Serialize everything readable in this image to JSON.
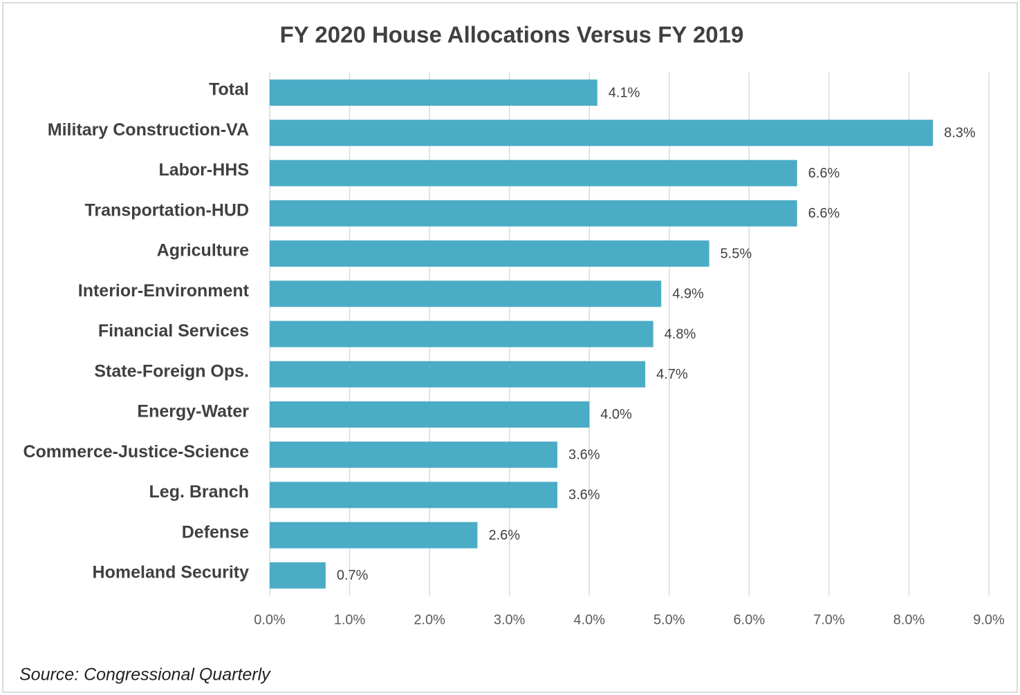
{
  "chart_data": {
    "type": "bar",
    "orientation": "horizontal",
    "title": "FY 2020 House Allocations Versus FY 2019",
    "source": "Source: Congressional Quarterly",
    "categories": [
      "Total",
      "Military Construction-VA",
      "Labor-HHS",
      "Transportation-HUD",
      "Agriculture",
      "Interior-Environment",
      "Financial Services",
      "State-Foreign Ops.",
      "Energy-Water",
      "Commerce-Justice-Science",
      "Leg. Branch",
      "Defense",
      "Homeland Security"
    ],
    "values": [
      4.1,
      8.3,
      6.6,
      6.6,
      5.5,
      4.9,
      4.8,
      4.7,
      4.0,
      3.6,
      3.6,
      2.6,
      0.7
    ],
    "value_labels": [
      "4.1%",
      "8.3%",
      "6.6%",
      "6.6%",
      "5.5%",
      "4.9%",
      "4.8%",
      "4.7%",
      "4.0%",
      "3.6%",
      "3.6%",
      "2.6%",
      "0.7%"
    ],
    "color": "#4bacc6",
    "xlim": [
      0,
      9
    ],
    "xticks": [
      {
        "value": 0,
        "label": "0.0%"
      },
      {
        "value": 1,
        "label": "1.0%"
      },
      {
        "value": 2,
        "label": "2.0%"
      },
      {
        "value": 3,
        "label": "3.0%"
      },
      {
        "value": 4,
        "label": "4.0%"
      },
      {
        "value": 5,
        "label": "5.0%"
      },
      {
        "value": 6,
        "label": "6.0%"
      },
      {
        "value": 7,
        "label": "7.0%"
      },
      {
        "value": 8,
        "label": "8.0%"
      },
      {
        "value": 9,
        "label": "9.0%"
      }
    ],
    "grid": true
  }
}
